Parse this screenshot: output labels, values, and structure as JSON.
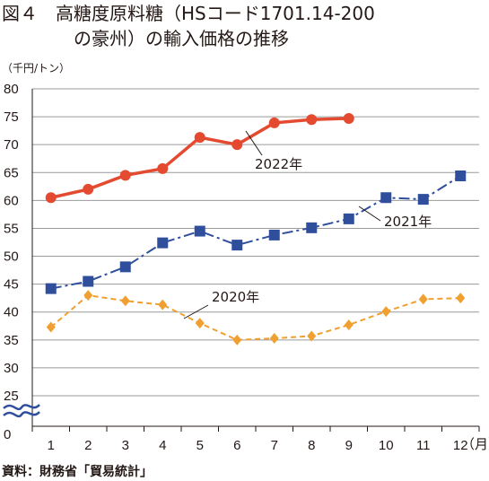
{
  "title": {
    "line1": "図４　高糖度原料糖（HSコード1701.14-200",
    "line2": "の豪州）の輸入価格の推移"
  },
  "unit_label": "（千円/トン）",
  "x_unit_label": "（月）",
  "source": "資料：財務省「貿易統計」",
  "chart_data": {
    "type": "line",
    "categories": [
      "1",
      "2",
      "3",
      "4",
      "5",
      "6",
      "7",
      "8",
      "9",
      "10",
      "11",
      "12"
    ],
    "x_zero_label": "0",
    "ylim": [
      25,
      80
    ],
    "yticks": [
      "80",
      "75",
      "70",
      "65",
      "60",
      "55",
      "50",
      "45",
      "40",
      "35",
      "30",
      "25"
    ],
    "ytick_values": [
      80,
      75,
      70,
      65,
      60,
      55,
      50,
      45,
      40,
      35,
      30,
      25
    ],
    "axis_break": true,
    "grid": true,
    "series": [
      {
        "name": "2022年",
        "color": "#e34a2f",
        "marker": "circle",
        "line_style": "solid",
        "values": [
          60.5,
          62.0,
          64.5,
          65.7,
          71.3,
          70.0,
          73.9,
          74.5,
          74.7,
          null,
          null,
          null
        ]
      },
      {
        "name": "2021年",
        "color": "#2f4f9d",
        "marker": "square",
        "line_style": "dashdot",
        "values": [
          44.2,
          45.5,
          48.1,
          52.4,
          54.5,
          52.0,
          53.8,
          55.1,
          56.7,
          60.5,
          60.2,
          64.4
        ]
      },
      {
        "name": "2020年",
        "color": "#f0a030",
        "marker": "diamond",
        "line_style": "dashed",
        "values": [
          37.3,
          43.0,
          42.0,
          41.3,
          38.0,
          35.0,
          35.3,
          35.7,
          37.7,
          40.1,
          42.3,
          42.5
        ]
      }
    ]
  }
}
